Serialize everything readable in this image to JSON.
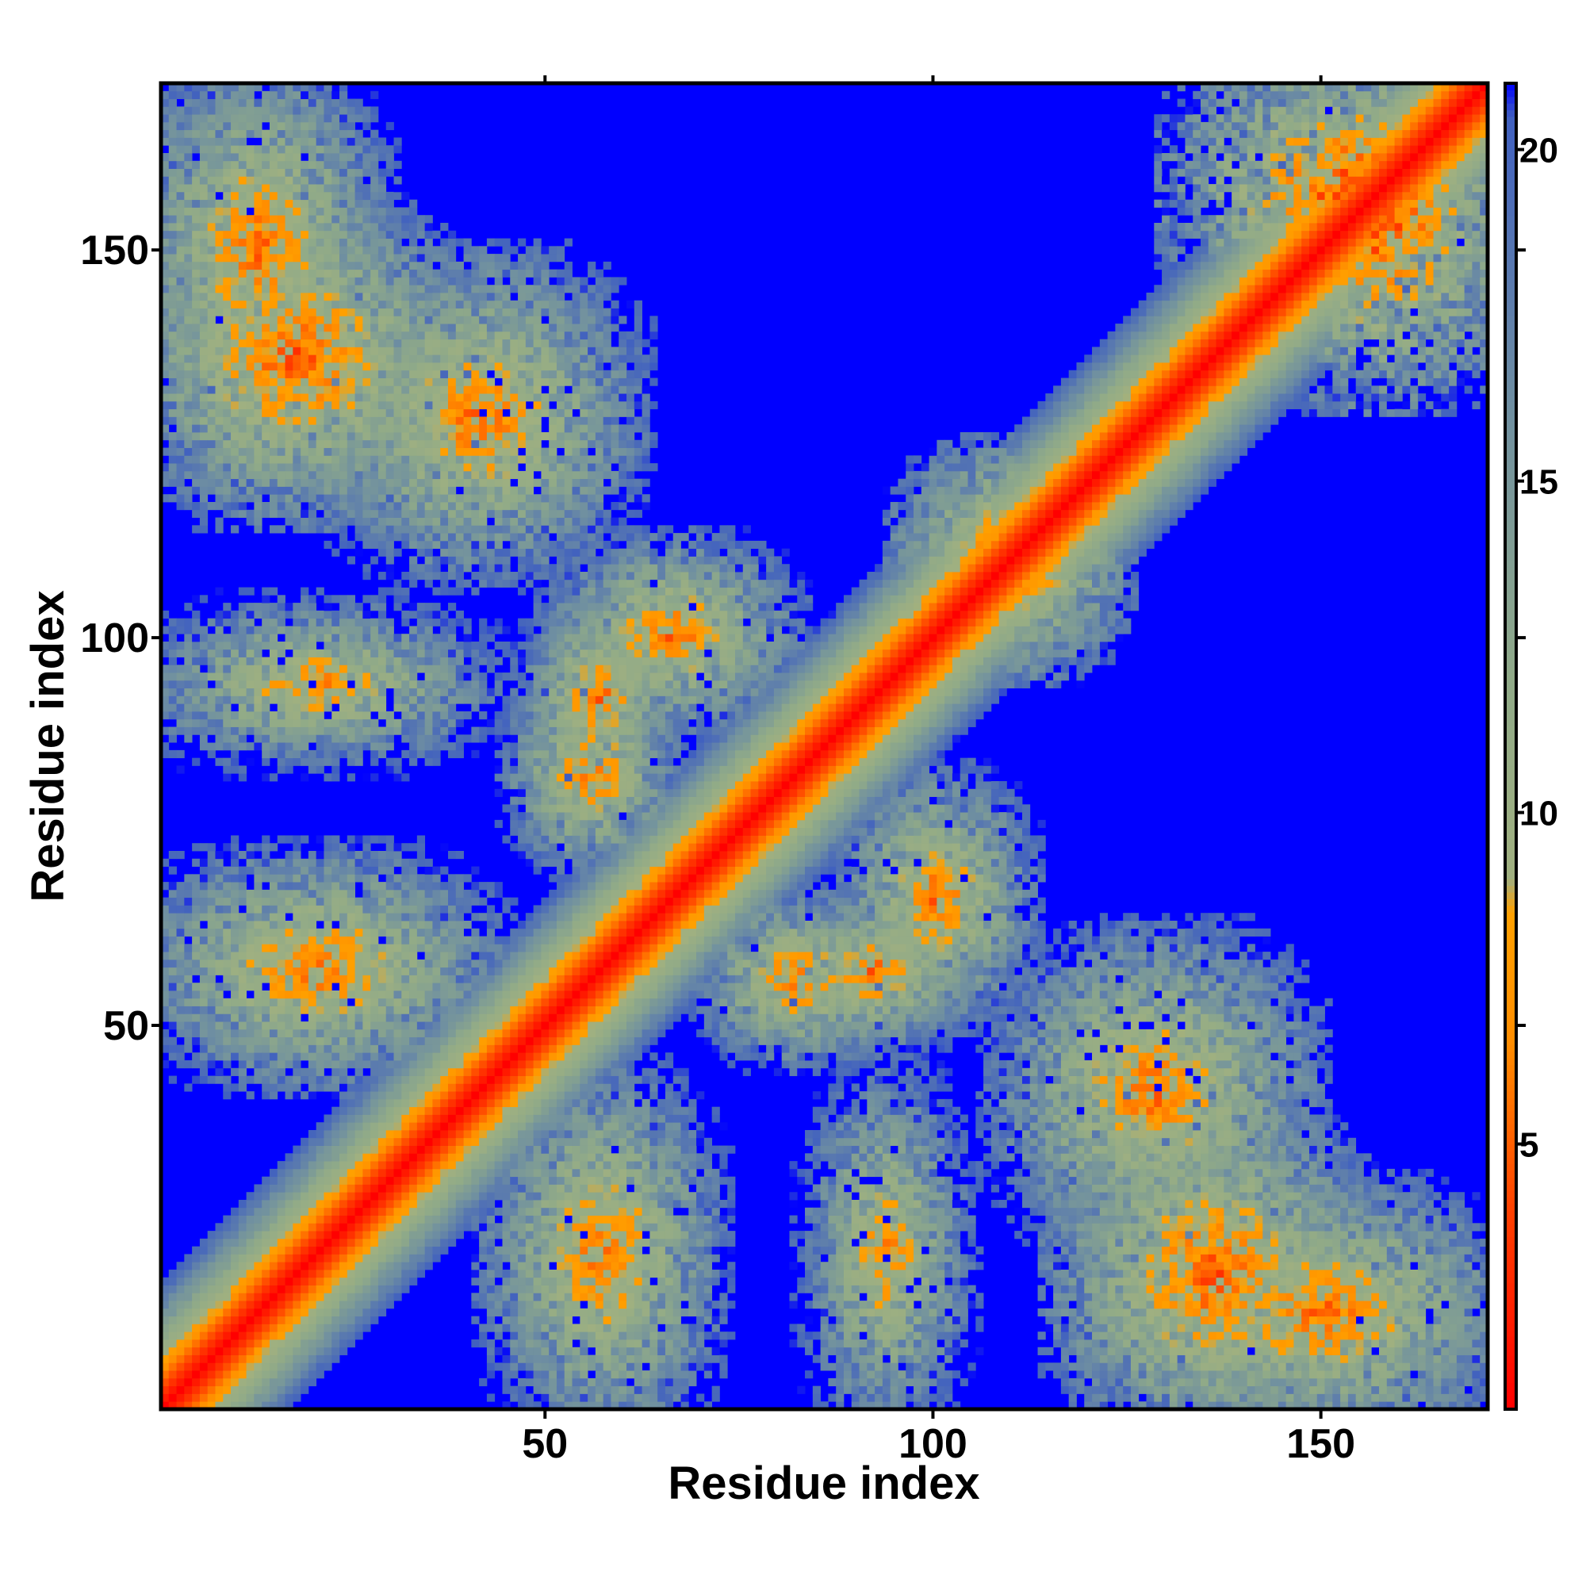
{
  "chart_data": {
    "type": "heatmap",
    "title": "",
    "xlabel": "Residue index",
    "ylabel": "Residue index",
    "xlim": [
      1,
      171
    ],
    "ylim": [
      1,
      171
    ],
    "x_ticks": [
      50,
      100,
      150
    ],
    "y_ticks": [
      50,
      100,
      150
    ],
    "colorbar": {
      "range": [
        1,
        21
      ],
      "ticks": [
        5,
        10,
        15,
        20
      ],
      "colors": [
        {
          "value": 1,
          "color": "#ff0000"
        },
        {
          "value": 4,
          "color": "#ff4000"
        },
        {
          "value": 6.5,
          "color": "#ff8c00"
        },
        {
          "value": 8.5,
          "color": "#ffa000"
        },
        {
          "value": 9,
          "color": "#a0b080"
        },
        {
          "value": 12,
          "color": "#90aa88"
        },
        {
          "value": 16,
          "color": "#7090a0"
        },
        {
          "value": 20.5,
          "color": "#4060c0"
        },
        {
          "value": 21,
          "color": "#0000ff"
        }
      ]
    },
    "n_residues": 171,
    "cutoff": 21,
    "contact_regions": [
      {
        "residue_i": [
          120,
          152
        ],
        "residue_j": [
          1,
          35
        ],
        "min_distance": 6
      },
      {
        "residue_i": [
          130,
          171
        ],
        "residue_j": [
          1,
          25
        ],
        "min_distance": 7
      },
      {
        "residue_i": [
          47,
          68
        ],
        "residue_j": [
          1,
          40
        ],
        "min_distance": 7
      },
      {
        "residue_i": [
          88,
          100
        ],
        "residue_j": [
          1,
          40
        ],
        "min_distance": 8
      },
      {
        "residue_i": [
          112,
          145
        ],
        "residue_j": [
          25,
          58
        ],
        "min_distance": 7
      },
      {
        "residue_i": [
          75,
          90
        ],
        "residue_j": [
          50,
          62
        ],
        "min_distance": 7
      },
      {
        "residue_i": [
          93,
          108
        ],
        "residue_j": [
          55,
          78
        ],
        "min_distance": 7
      },
      {
        "residue_i": [
          52,
          62
        ],
        "residue_j": [
          85,
          100
        ],
        "min_distance": 7
      },
      {
        "residue_i": [
          1,
          35
        ],
        "residue_j": [
          120,
          152
        ],
        "min_distance": 6
      },
      {
        "residue_i": [
          1,
          25
        ],
        "residue_j": [
          130,
          171
        ],
        "min_distance": 7
      },
      {
        "residue_i": [
          1,
          40
        ],
        "residue_j": [
          47,
          68
        ],
        "min_distance": 7
      },
      {
        "residue_i": [
          1,
          40
        ],
        "residue_j": [
          88,
          100
        ],
        "min_distance": 8
      },
      {
        "residue_i": [
          25,
          58
        ],
        "residue_j": [
          112,
          145
        ],
        "min_distance": 7
      },
      {
        "residue_i": [
          50,
          62
        ],
        "residue_j": [
          75,
          90
        ],
        "min_distance": 7
      },
      {
        "residue_i": [
          55,
          78
        ],
        "residue_j": [
          93,
          108
        ],
        "min_distance": 7
      },
      {
        "residue_i": [
          85,
          100
        ],
        "residue_j": [
          52,
          62
        ],
        "min_distance": 7
      },
      {
        "residue_i": [
          145,
          171
        ],
        "residue_j": [
          135,
          171
        ],
        "min_distance": 5
      },
      {
        "residue_i": [
          100,
          120
        ],
        "residue_j": [
          100,
          120
        ],
        "min_distance": 6
      }
    ]
  }
}
